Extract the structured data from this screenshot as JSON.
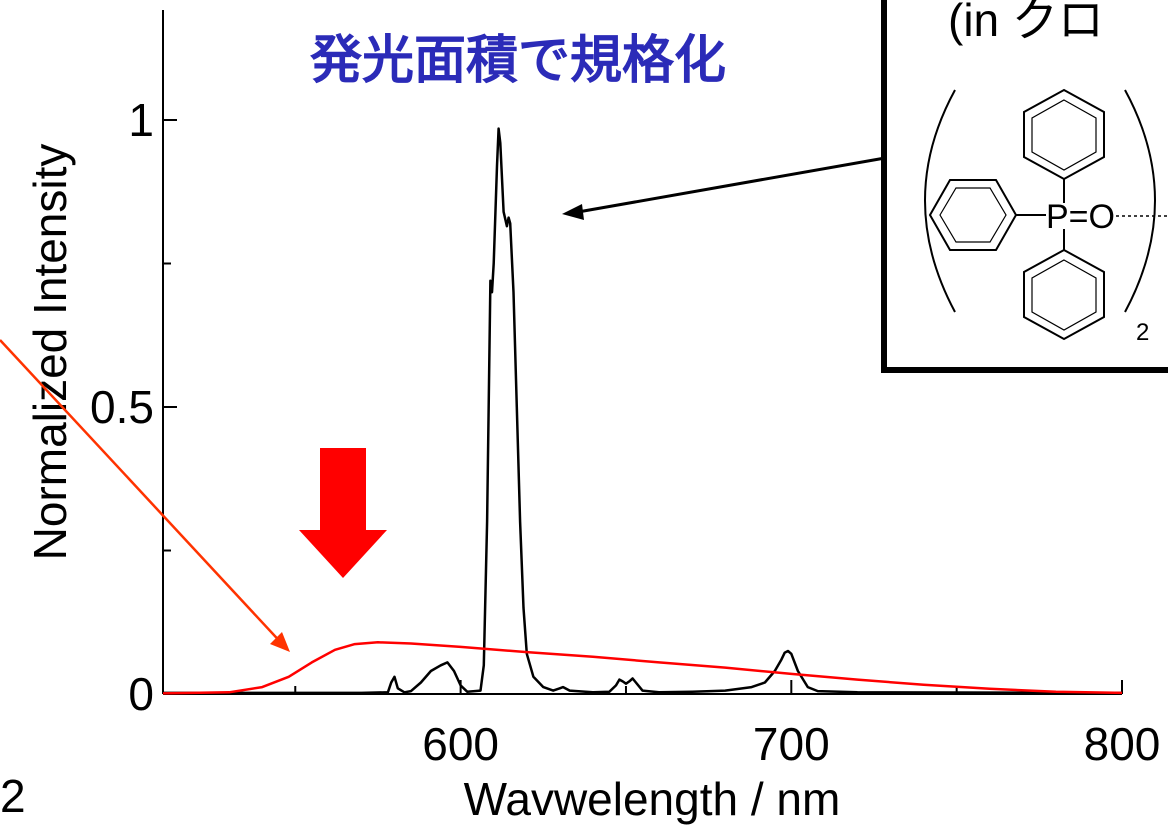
{
  "chart_data": {
    "type": "line",
    "title": "発光面積で規格化",
    "xlabel": "Wavwelength / nm",
    "ylabel": "Normalized Intensity",
    "xlim": [
      510,
      800
    ],
    "ylim": [
      0,
      1.2
    ],
    "x_ticks": [
      {
        "value": 600,
        "label": "600"
      },
      {
        "value": 700,
        "label": "700"
      },
      {
        "value": 800,
        "label": "800"
      }
    ],
    "x_minor_ticks": [
      550,
      650,
      750
    ],
    "y_ticks": [
      {
        "value": 0,
        "label": "0"
      },
      {
        "value": 0.5,
        "label": "0.5"
      },
      {
        "value": 1,
        "label": "1"
      }
    ],
    "y_minor_ticks": [
      0.25,
      0.75
    ],
    "series": [
      {
        "color": "#000000",
        "points": [
          [
            510,
            0.002
          ],
          [
            570,
            0.002
          ],
          [
            578,
            0.003
          ],
          [
            579,
            0.02
          ],
          [
            580,
            0.03
          ],
          [
            581,
            0.01
          ],
          [
            583,
            0.003
          ],
          [
            585,
            0.005
          ],
          [
            588,
            0.02
          ],
          [
            591,
            0.04
          ],
          [
            594,
            0.05
          ],
          [
            596,
            0.055
          ],
          [
            598,
            0.04
          ],
          [
            600,
            0.015
          ],
          [
            602,
            0.004
          ],
          [
            606,
            0.006
          ],
          [
            607,
            0.05
          ],
          [
            608,
            0.3
          ],
          [
            609,
            0.72
          ],
          [
            609.5,
            0.7
          ],
          [
            610,
            0.75
          ],
          [
            611,
            0.92
          ],
          [
            611.5,
            0.985
          ],
          [
            612,
            0.96
          ],
          [
            613,
            0.84
          ],
          [
            614,
            0.815
          ],
          [
            614.5,
            0.83
          ],
          [
            615,
            0.82
          ],
          [
            616,
            0.7
          ],
          [
            617,
            0.5
          ],
          [
            618,
            0.3
          ],
          [
            619,
            0.15
          ],
          [
            620,
            0.07
          ],
          [
            622,
            0.03
          ],
          [
            625,
            0.012
          ],
          [
            628,
            0.006
          ],
          [
            630,
            0.01
          ],
          [
            631,
            0.012
          ],
          [
            633,
            0.006
          ],
          [
            640,
            0.003
          ],
          [
            645,
            0.004
          ],
          [
            647,
            0.015
          ],
          [
            648,
            0.025
          ],
          [
            649,
            0.022
          ],
          [
            650,
            0.018
          ],
          [
            651,
            0.022
          ],
          [
            652,
            0.027
          ],
          [
            653,
            0.02
          ],
          [
            655,
            0.006
          ],
          [
            660,
            0.003
          ],
          [
            670,
            0.004
          ],
          [
            680,
            0.006
          ],
          [
            688,
            0.012
          ],
          [
            692,
            0.02
          ],
          [
            695,
            0.04
          ],
          [
            697,
            0.06
          ],
          [
            698,
            0.072
          ],
          [
            699,
            0.075
          ],
          [
            700,
            0.07
          ],
          [
            702,
            0.04
          ],
          [
            705,
            0.012
          ],
          [
            708,
            0.005
          ],
          [
            720,
            0.003
          ],
          [
            800,
            0.002
          ]
        ]
      },
      {
        "color": "#ff0000",
        "points": [
          [
            510,
            0.001
          ],
          [
            530,
            0.003
          ],
          [
            540,
            0.012
          ],
          [
            548,
            0.03
          ],
          [
            555,
            0.055
          ],
          [
            562,
            0.077
          ],
          [
            568,
            0.087
          ],
          [
            575,
            0.09
          ],
          [
            585,
            0.088
          ],
          [
            600,
            0.082
          ],
          [
            620,
            0.073
          ],
          [
            640,
            0.065
          ],
          [
            660,
            0.055
          ],
          [
            680,
            0.046
          ],
          [
            700,
            0.035
          ],
          [
            720,
            0.025
          ],
          [
            740,
            0.016
          ],
          [
            760,
            0.009
          ],
          [
            780,
            0.004
          ],
          [
            800,
            0.002
          ]
        ]
      }
    ],
    "annotations": {
      "inset_partial_label": "(in クロ",
      "inset_atoms": "P=O",
      "inset_subscript": "2",
      "bottom_left_fragment": "2"
    }
  },
  "colors": {
    "title": "#2b2bb8",
    "down_arrow": "#ff0000",
    "pointer_arrow_red": "#ff3300",
    "pointer_arrow_black": "#000000"
  }
}
